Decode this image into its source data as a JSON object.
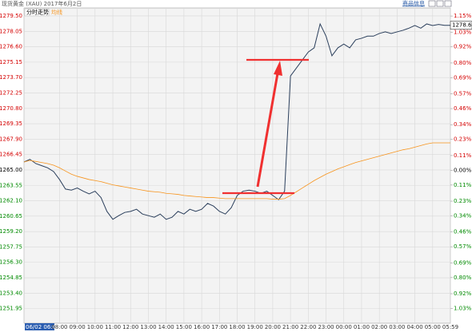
{
  "chart_data": {
    "type": "line",
    "title": "现货黄金 (XAU) 2017年6月2日",
    "info_link": "商品信息",
    "last_price": 1278.62,
    "categories": [
      "06/02 06:00",
      null,
      null,
      null,
      null,
      null,
      "08:00",
      null,
      null,
      "09:00",
      null,
      null,
      "10:00",
      null,
      null,
      "11:00",
      null,
      null,
      "12:00",
      null,
      null,
      "13:00",
      null,
      null,
      "14:00",
      null,
      null,
      "15:00",
      null,
      null,
      "16:00",
      null,
      null,
      "17:00",
      null,
      null,
      "18:00",
      null,
      null,
      "19:00",
      null,
      null,
      "20:00",
      null,
      null,
      "21:00",
      null,
      null,
      "22:00",
      null,
      null,
      "23:00",
      null,
      null,
      "00:00",
      null,
      null,
      "01:00",
      null,
      null,
      "02:00",
      null,
      null,
      "03:00",
      null,
      null,
      "04:00",
      null,
      null,
      "05:00",
      null,
      null,
      "05:59"
    ],
    "series": [
      {
        "name": "分时走势",
        "color": "#2b3f5c",
        "values": [
          1265.75,
          1266.0,
          1265.6,
          1265.4,
          1265.2,
          1264.85,
          1264.1,
          1263.2,
          1263.1,
          1263.3,
          1263.0,
          1262.75,
          1263.0,
          1262.4,
          1261.1,
          1260.35,
          1260.7,
          1261.0,
          1261.1,
          1261.3,
          1260.85,
          1260.7,
          1260.55,
          1260.85,
          1260.35,
          1260.55,
          1261.1,
          1260.85,
          1261.3,
          1261.1,
          1261.3,
          1261.85,
          1261.6,
          1261.1,
          1260.85,
          1261.45,
          1262.6,
          1263.0,
          1263.1,
          1263.0,
          1262.8,
          1263.0,
          1262.6,
          1262.2,
          1263.0,
          1273.85,
          1274.6,
          1275.35,
          1276.1,
          1276.5,
          1278.75,
          1277.6,
          1275.75,
          1276.5,
          1276.85,
          1276.5,
          1277.25,
          1277.4,
          1277.6,
          1277.6,
          1277.85,
          1278.0,
          1277.85,
          1278.0,
          1278.15,
          1278.35,
          1278.6,
          1278.35,
          1278.75,
          1278.6,
          1278.7,
          1278.62,
          1278.62
        ]
      },
      {
        "name": "均线",
        "color": "#f7941d",
        "values": [
          1265.75,
          1265.9,
          1265.8,
          1265.7,
          1265.6,
          1265.45,
          1265.2,
          1264.9,
          1264.6,
          1264.4,
          1264.25,
          1264.1,
          1264.0,
          1263.9,
          1263.75,
          1263.6,
          1263.5,
          1263.4,
          1263.3,
          1263.2,
          1263.1,
          1263.0,
          1262.95,
          1262.9,
          1262.8,
          1262.75,
          1262.7,
          1262.6,
          1262.55,
          1262.5,
          1262.45,
          1262.4,
          1262.4,
          1262.35,
          1262.3,
          1262.3,
          1262.3,
          1262.3,
          1262.3,
          1262.3,
          1262.3,
          1262.3,
          1262.25,
          1262.25,
          1262.3,
          1262.6,
          1262.95,
          1263.3,
          1263.65,
          1264.0,
          1264.3,
          1264.6,
          1264.85,
          1265.1,
          1265.3,
          1265.5,
          1265.7,
          1265.85,
          1266.0,
          1266.15,
          1266.3,
          1266.45,
          1266.6,
          1266.75,
          1266.9,
          1267.0,
          1267.15,
          1267.3,
          1267.45,
          1267.55,
          1267.55,
          1267.55,
          1267.55
        ]
      }
    ],
    "ylim": [
      1250.57,
      1280.25
    ],
    "yticks": [
      {
        "value": 1251.95,
        "label": "1251.95"
      },
      {
        "value": 1253.4,
        "label": "1253.40"
      },
      {
        "value": 1254.85,
        "label": "1254.85"
      },
      {
        "value": 1256.3,
        "label": "1256.30"
      },
      {
        "value": 1257.75,
        "label": "1257.75"
      },
      {
        "value": 1259.2,
        "label": "1259.20"
      },
      {
        "value": 1260.65,
        "label": "1260.65"
      },
      {
        "value": 1262.1,
        "label": "1262.10"
      },
      {
        "value": 1263.55,
        "label": "1263.55"
      },
      {
        "value": 1265,
        "label": "1265.00"
      },
      {
        "value": 1266.45,
        "label": "1266.45"
      },
      {
        "value": 1267.9,
        "label": "1267.90"
      },
      {
        "value": 1269.35,
        "label": "1269.35"
      },
      {
        "value": 1270.8,
        "label": "1270.80"
      },
      {
        "value": 1272.25,
        "label": "1272.25"
      },
      {
        "value": 1273.7,
        "label": "1273.70"
      },
      {
        "value": 1275.15,
        "label": "1275.15"
      },
      {
        "value": 1276.6,
        "label": "1276.60"
      },
      {
        "value": 1278.05,
        "label": "1278.05"
      },
      {
        "value": 1279.5,
        "label": "1279.50"
      }
    ],
    "y2lim": [
      -1.14,
      1.21
    ],
    "y2ticks": [
      {
        "value": -1.03,
        "label": "1.03%"
      },
      {
        "value": -0.92,
        "label": "0.92%"
      },
      {
        "value": -0.8,
        "label": "0.80%"
      },
      {
        "value": -0.69,
        "label": "0.69%"
      },
      {
        "value": -0.57,
        "label": "0.57%"
      },
      {
        "value": -0.46,
        "label": "0.46%"
      },
      {
        "value": -0.34,
        "label": "0.34%"
      },
      {
        "value": -0.23,
        "label": "0.23%"
      },
      {
        "value": -0.11,
        "label": "0.11%"
      },
      {
        "value": 0,
        "label": "0.00%"
      },
      {
        "value": 0.11,
        "label": "0.11%"
      },
      {
        "value": 0.23,
        "label": "0.23%"
      },
      {
        "value": 0.34,
        "label": "0.34%"
      },
      {
        "value": 0.46,
        "label": "0.46%"
      },
      {
        "value": 0.57,
        "label": "0.57%"
      },
      {
        "value": 0.69,
        "label": "0.69%"
      },
      {
        "value": 0.8,
        "label": "0.80%"
      },
      {
        "value": 0.92,
        "label": "0.92%"
      },
      {
        "value": 1.03,
        "label": "1.03%"
      },
      {
        "value": 1.15,
        "label": "1.15%"
      }
    ],
    "up_color": "#d40000",
    "down_color": "#008a00",
    "flat_color": "#000000",
    "grid": true
  }
}
